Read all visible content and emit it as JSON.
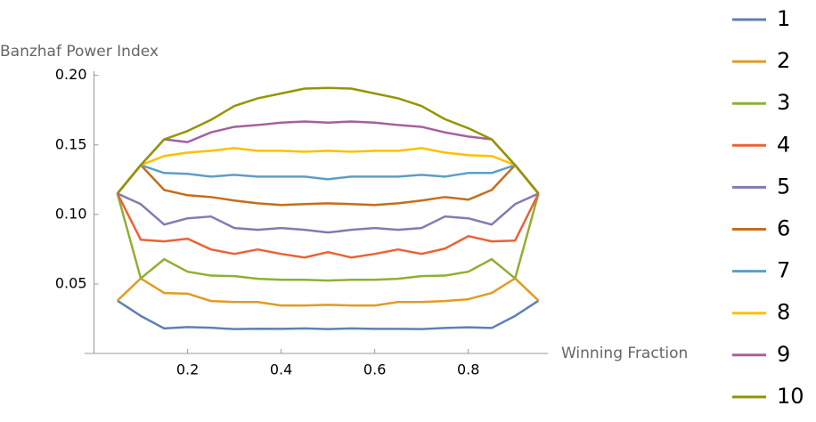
{
  "chart_data": {
    "type": "line",
    "y_label": "Banzhaf Power Index",
    "x_label": "Winning Fraction",
    "x": [
      0.05,
      0.1,
      0.15,
      0.2,
      0.25,
      0.3,
      0.35,
      0.4,
      0.45,
      0.5,
      0.55,
      0.6,
      0.65,
      0.7,
      0.75,
      0.8,
      0.85,
      0.9,
      0.95
    ],
    "xlim": [
      -0.02,
      0.97
    ],
    "ylim": [
      0,
      0.203
    ],
    "xticks": [
      0.2,
      0.4,
      0.6,
      0.8
    ],
    "yticks": [
      0.05,
      {
        "value": 0.1,
        "label": "0.10"
      },
      0.15,
      {
        "value": 0.2,
        "label": "0.20"
      }
    ],
    "series": [
      {
        "name": "1",
        "color": "#5e81b5",
        "values": [
          0.038,
          0.027,
          0.018,
          0.019,
          0.0185,
          0.0175,
          0.0178,
          0.0177,
          0.018,
          0.0175,
          0.018,
          0.0177,
          0.0177,
          0.0175,
          0.0183,
          0.0188,
          0.0183,
          0.027,
          0.038
        ]
      },
      {
        "name": "2",
        "color": "#e19c24",
        "values": [
          0.038,
          0.054,
          0.0435,
          0.043,
          0.0377,
          0.037,
          0.037,
          0.0345,
          0.0345,
          0.035,
          0.0345,
          0.0345,
          0.037,
          0.037,
          0.0377,
          0.039,
          0.0435,
          0.054,
          0.038
        ]
      },
      {
        "name": "3",
        "color": "#8fb032",
        "values": [
          0.115,
          0.054,
          0.0678,
          0.0588,
          0.056,
          0.0556,
          0.0537,
          0.053,
          0.053,
          0.0524,
          0.053,
          0.053,
          0.0537,
          0.0556,
          0.056,
          0.0588,
          0.0678,
          0.054,
          0.115
        ]
      },
      {
        "name": "4",
        "color": "#eb6235",
        "values": [
          0.115,
          0.0818,
          0.0806,
          0.0825,
          0.0748,
          0.0716,
          0.0748,
          0.0716,
          0.069,
          0.0729,
          0.069,
          0.0716,
          0.0748,
          0.0716,
          0.0754,
          0.0844,
          0.0806,
          0.0812,
          0.115
        ]
      },
      {
        "name": "5",
        "color": "#8778b3",
        "values": [
          0.115,
          0.1074,
          0.0927,
          0.0972,
          0.0985,
          0.0902,
          0.0889,
          0.0902,
          0.0889,
          0.087,
          0.0889,
          0.0902,
          0.0889,
          0.0902,
          0.0985,
          0.0972,
          0.0927,
          0.1074,
          0.115
        ]
      },
      {
        "name": "6",
        "color": "#c56e1a",
        "values": [
          0.115,
          0.1355,
          0.1176,
          0.1138,
          0.1125,
          0.11,
          0.108,
          0.1068,
          0.1074,
          0.108,
          0.1074,
          0.1068,
          0.108,
          0.11,
          0.1125,
          0.1106,
          0.1176,
          0.1355,
          0.115
        ]
      },
      {
        "name": "7",
        "color": "#5d9ec7",
        "values": [
          0.115,
          0.1355,
          0.1298,
          0.1292,
          0.1272,
          0.1285,
          0.1272,
          0.1272,
          0.1272,
          0.1253,
          0.1272,
          0.1272,
          0.1272,
          0.1285,
          0.1272,
          0.1298,
          0.1298,
          0.1355,
          0.115
        ]
      },
      {
        "name": "8",
        "color": "#ffbf00",
        "values": [
          0.115,
          0.1355,
          0.142,
          0.1445,
          0.1458,
          0.1477,
          0.1458,
          0.1458,
          0.1451,
          0.1458,
          0.1451,
          0.1458,
          0.1458,
          0.1477,
          0.1445,
          0.1426,
          0.142,
          0.1355,
          0.115
        ]
      },
      {
        "name": "9",
        "color": "#a5609d",
        "values": [
          0.115,
          0.1355,
          0.154,
          0.152,
          0.159,
          0.163,
          0.1643,
          0.166,
          0.1668,
          0.166,
          0.1668,
          0.166,
          0.1643,
          0.163,
          0.159,
          0.156,
          0.154,
          0.1355,
          0.115
        ]
      },
      {
        "name": "10",
        "color": "#929600",
        "values": [
          0.115,
          0.1355,
          0.154,
          0.16,
          0.168,
          0.178,
          0.1835,
          0.187,
          0.1905,
          0.191,
          0.1905,
          0.187,
          0.1835,
          0.178,
          0.1685,
          0.162,
          0.154,
          0.1355,
          0.115
        ]
      }
    ]
  }
}
